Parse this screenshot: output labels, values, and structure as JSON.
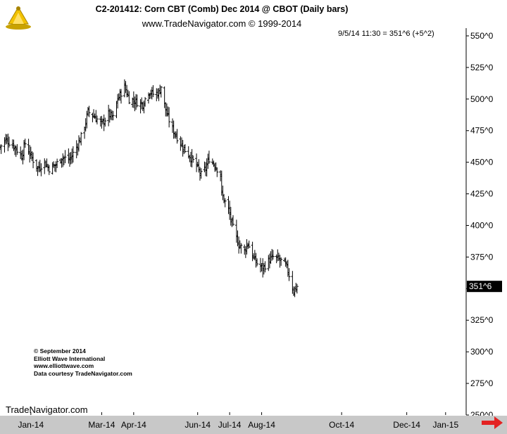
{
  "header": {
    "title": "C2-201412:  Corn CBT (Comb) Dec 2014 @ CBOT  (Daily bars)",
    "subtitle": "www.TradeNavigator.com © 1999-2014",
    "last_readout": "9/5/14 11:30 = 351^6 (+5^2)"
  },
  "copyright_block": {
    "line1": "© September 2014",
    "line2": "Elliott Wave International",
    "line3": "www.elliottwave.com",
    "line4": "Data courtesy TradeNavigator.com"
  },
  "watermark": "TradeNavigator.com",
  "colors": {
    "background": "#ffffff",
    "bars": "#000000",
    "axis_bar": "#c8c8c8",
    "price_box": "#000000",
    "arrow": "#e32222"
  },
  "icons": {
    "logo": "trade-navigator-logo-icon",
    "arrow": "right-arrow-icon"
  },
  "chart_data": {
    "type": "ohlc",
    "title": "C2-201412:  Corn CBT (Comb) Dec 2014 @ CBOT  (Daily bars)",
    "ylim": [
      250,
      555
    ],
    "yticks": [
      {
        "value": 250,
        "label": "250^0"
      },
      {
        "value": 275,
        "label": "275^0"
      },
      {
        "value": 300,
        "label": "300^0"
      },
      {
        "value": 325,
        "label": "325^0"
      },
      {
        "value": 350,
        "label": "350^0"
      },
      {
        "value": 375,
        "label": "375^0"
      },
      {
        "value": 400,
        "label": "400^0"
      },
      {
        "value": 425,
        "label": "425^0"
      },
      {
        "value": 450,
        "label": "450^0"
      },
      {
        "value": 475,
        "label": "475^0"
      },
      {
        "value": 500,
        "label": "500^0"
      },
      {
        "value": 525,
        "label": "525^0"
      },
      {
        "value": 550,
        "label": "550^0"
      }
    ],
    "xlim": [
      "2013-12-19",
      "2015-01-31"
    ],
    "xticks": [
      {
        "date": "2014-01-15",
        "label": "Jan-14"
      },
      {
        "date": "2014-03-18",
        "label": "Mar-14"
      },
      {
        "date": "2014-04-15",
        "label": "Apr-14"
      },
      {
        "date": "2014-06-10",
        "label": "Jun-14"
      },
      {
        "date": "2014-07-08",
        "label": "Jul-14"
      },
      {
        "date": "2014-08-05",
        "label": "Aug-14"
      },
      {
        "date": "2014-10-14",
        "label": "Oct-14"
      },
      {
        "date": "2014-12-10",
        "label": "Dec-14"
      },
      {
        "date": "2015-01-13",
        "label": "Jan-15"
      }
    ],
    "last_price": {
      "value": 351.75,
      "label": "351^6"
    },
    "anchors": [
      {
        "date": "2013-12-19",
        "price": 462
      },
      {
        "date": "2013-12-24",
        "price": 468
      },
      {
        "date": "2013-12-31",
        "price": 463
      },
      {
        "date": "2014-01-07",
        "price": 455
      },
      {
        "date": "2014-01-10",
        "price": 465
      },
      {
        "date": "2014-01-15",
        "price": 455
      },
      {
        "date": "2014-01-21",
        "price": 445
      },
      {
        "date": "2014-01-27",
        "price": 450
      },
      {
        "date": "2014-01-31",
        "price": 445
      },
      {
        "date": "2014-02-06",
        "price": 448
      },
      {
        "date": "2014-02-11",
        "price": 454
      },
      {
        "date": "2014-02-18",
        "price": 452
      },
      {
        "date": "2014-02-24",
        "price": 462
      },
      {
        "date": "2014-02-28",
        "price": 470
      },
      {
        "date": "2014-03-03",
        "price": 478
      },
      {
        "date": "2014-03-06",
        "price": 490
      },
      {
        "date": "2014-03-12",
        "price": 486
      },
      {
        "date": "2014-03-18",
        "price": 480
      },
      {
        "date": "2014-03-24",
        "price": 488
      },
      {
        "date": "2014-03-28",
        "price": 485
      },
      {
        "date": "2014-04-01",
        "price": 500
      },
      {
        "date": "2014-04-07",
        "price": 510
      },
      {
        "date": "2014-04-11",
        "price": 500
      },
      {
        "date": "2014-04-17",
        "price": 498
      },
      {
        "date": "2014-04-23",
        "price": 496
      },
      {
        "date": "2014-04-28",
        "price": 506
      },
      {
        "date": "2014-05-02",
        "price": 504
      },
      {
        "date": "2014-05-07",
        "price": 505
      },
      {
        "date": "2014-05-09",
        "price": 510
      },
      {
        "date": "2014-05-12",
        "price": 495
      },
      {
        "date": "2014-05-14",
        "price": 488
      },
      {
        "date": "2014-05-19",
        "price": 476
      },
      {
        "date": "2014-05-23",
        "price": 470
      },
      {
        "date": "2014-05-28",
        "price": 462
      },
      {
        "date": "2014-06-03",
        "price": 455
      },
      {
        "date": "2014-06-09",
        "price": 447
      },
      {
        "date": "2014-06-13",
        "price": 440
      },
      {
        "date": "2014-06-17",
        "price": 445
      },
      {
        "date": "2014-06-20",
        "price": 453
      },
      {
        "date": "2014-06-25",
        "price": 448
      },
      {
        "date": "2014-06-30",
        "price": 440
      },
      {
        "date": "2014-07-01",
        "price": 425
      },
      {
        "date": "2014-07-07",
        "price": 412
      },
      {
        "date": "2014-07-11",
        "price": 398
      },
      {
        "date": "2014-07-16",
        "price": 385
      },
      {
        "date": "2014-07-21",
        "price": 380
      },
      {
        "date": "2014-07-24",
        "price": 386
      },
      {
        "date": "2014-07-29",
        "price": 374
      },
      {
        "date": "2014-08-01",
        "price": 370
      },
      {
        "date": "2014-08-06",
        "price": 366
      },
      {
        "date": "2014-08-11",
        "price": 372
      },
      {
        "date": "2014-08-15",
        "price": 375
      },
      {
        "date": "2014-08-20",
        "price": 373
      },
      {
        "date": "2014-08-25",
        "price": 370
      },
      {
        "date": "2014-08-28",
        "price": 364
      },
      {
        "date": "2014-09-02",
        "price": 348
      },
      {
        "date": "2014-09-05",
        "price": 351.75
      }
    ]
  }
}
